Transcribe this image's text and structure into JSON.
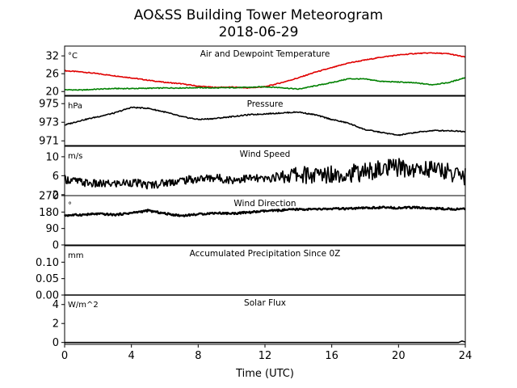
{
  "title": "AO&SS Building Tower Meteorogram",
  "subtitle": "2018-06-29",
  "chart_data": {
    "type": "line",
    "xlabel": "Time (UTC)",
    "xlim": [
      0,
      24
    ],
    "xticks": [
      "0",
      "4",
      "8",
      "12",
      "16",
      "20",
      "24"
    ],
    "panels": [
      {
        "name": "temperature",
        "label": "Air and Dewpoint Temperature",
        "unit": "°C",
        "ylim": [
          18.7,
          35.3
        ],
        "yticks": [
          "32",
          "26",
          "20"
        ],
        "series": [
          {
            "color": "#e00000",
            "x": [
              0,
              1,
              2,
              3,
              4,
              5,
              6,
              7,
              8,
              9,
              10,
              11,
              12,
              13,
              14,
              15,
              16,
              17,
              18,
              19,
              20,
              21,
              22,
              23,
              24
            ],
            "y": [
              27.0,
              26.6,
              26.0,
              25.3,
              24.6,
              23.8,
              23.1,
              22.6,
              21.8,
              21.4,
              21.5,
              21.2,
              21.6,
              23.0,
              24.6,
              26.5,
              28.0,
              29.6,
              30.6,
              31.6,
              32.3,
              32.8,
              33.0,
              32.7,
              31.6
            ]
          },
          {
            "color": "#008000",
            "x": [
              0,
              1,
              2,
              3,
              4,
              5,
              6,
              7,
              8,
              9,
              10,
              11,
              12,
              13,
              14,
              15,
              16,
              17,
              18,
              19,
              20,
              21,
              22,
              23,
              24
            ],
            "y": [
              20.6,
              20.5,
              20.8,
              21.0,
              21.0,
              21.1,
              21.2,
              21.2,
              21.3,
              21.2,
              21.3,
              21.4,
              21.6,
              21.3,
              20.8,
              21.9,
              23.0,
              24.3,
              24.2,
              23.4,
              23.2,
              22.9,
              22.3,
              23.0,
              24.7
            ]
          }
        ]
      },
      {
        "name": "pressure",
        "label": "Pressure",
        "unit": "hPa",
        "ylim": [
          970.5,
          975.8
        ],
        "yticks": [
          "975",
          "973",
          "971"
        ],
        "series": [
          {
            "color": "#000000",
            "x": [
              0,
              1,
              2,
              3,
              4,
              5,
              6,
              7,
              8,
              9,
              10,
              11,
              12,
              13,
              14,
              15,
              16,
              17,
              18,
              19,
              20,
              21,
              22,
              23,
              24
            ],
            "y": [
              972.7,
              973.2,
              973.6,
              974.0,
              974.6,
              974.5,
              974.1,
              973.6,
              973.3,
              973.4,
              973.6,
              973.8,
              973.9,
              974.0,
              974.1,
              973.8,
              973.3,
              972.9,
              972.2,
              971.9,
              971.6,
              971.9,
              972.1,
              972.1,
              972.0
            ]
          }
        ]
      },
      {
        "name": "wind_speed",
        "label": "Wind Speed",
        "unit": "m/s",
        "ylim": [
          1.8,
          12.2
        ],
        "yticks": [
          "10",
          "6",
          "2"
        ],
        "series": [
          {
            "color": "#000000",
            "x": [
              0,
              1,
              2,
              3,
              4,
              5,
              6,
              7,
              8,
              9,
              10,
              11,
              12,
              13,
              14,
              15,
              16,
              17,
              18,
              19,
              20,
              21,
              22,
              23,
              24
            ],
            "y": [
              5.3,
              4.6,
              4.2,
              4.3,
              4.6,
              4.0,
              4.5,
              5.0,
              5.3,
              5.6,
              5.1,
              5.5,
              5.2,
              6.0,
              6.3,
              6.0,
              6.5,
              6.4,
              6.8,
              7.3,
              7.8,
              7.2,
              7.6,
              6.8,
              5.8
            ]
          }
        ]
      },
      {
        "name": "wind_direction",
        "label": "Wind Direction",
        "unit": "°",
        "ylim": [
          0,
          270
        ],
        "yticks": [
          "270",
          "180",
          "90",
          "0"
        ],
        "series": [
          {
            "color": "#000000",
            "x": [
              0,
              1,
              2,
              3,
              4,
              5,
              6,
              7,
              8,
              9,
              10,
              11,
              12,
              13,
              14,
              15,
              16,
              17,
              18,
              19,
              20,
              21,
              22,
              23,
              24
            ],
            "y": [
              162,
              165,
              170,
              165,
              175,
              188,
              172,
              160,
              168,
              175,
              172,
              178,
              185,
              190,
              195,
              195,
              198,
              198,
              202,
              205,
              203,
              205,
              200,
              197,
              196
            ]
          }
        ]
      },
      {
        "name": "precipitation",
        "label": "Accumulated Precipitation Since 0Z",
        "unit": "mm",
        "ylim": [
          0,
          0.15
        ],
        "yticks": [
          "0.10",
          "0.05",
          "0.00"
        ],
        "series": [
          {
            "color": "#000000",
            "x": [
              0,
              24
            ],
            "y": [
              0,
              0
            ]
          }
        ]
      },
      {
        "name": "solar_flux",
        "label": "Solar Flux",
        "unit": "W/m^2",
        "ylim": [
          -0.2,
          5.0
        ],
        "yticks": [
          "4",
          "2",
          "0"
        ],
        "series": [
          {
            "color": "#000000",
            "x": [
              0,
              23.6,
              23.8,
              24
            ],
            "y": [
              0,
              0,
              0.15,
              0.05
            ]
          }
        ]
      }
    ]
  }
}
